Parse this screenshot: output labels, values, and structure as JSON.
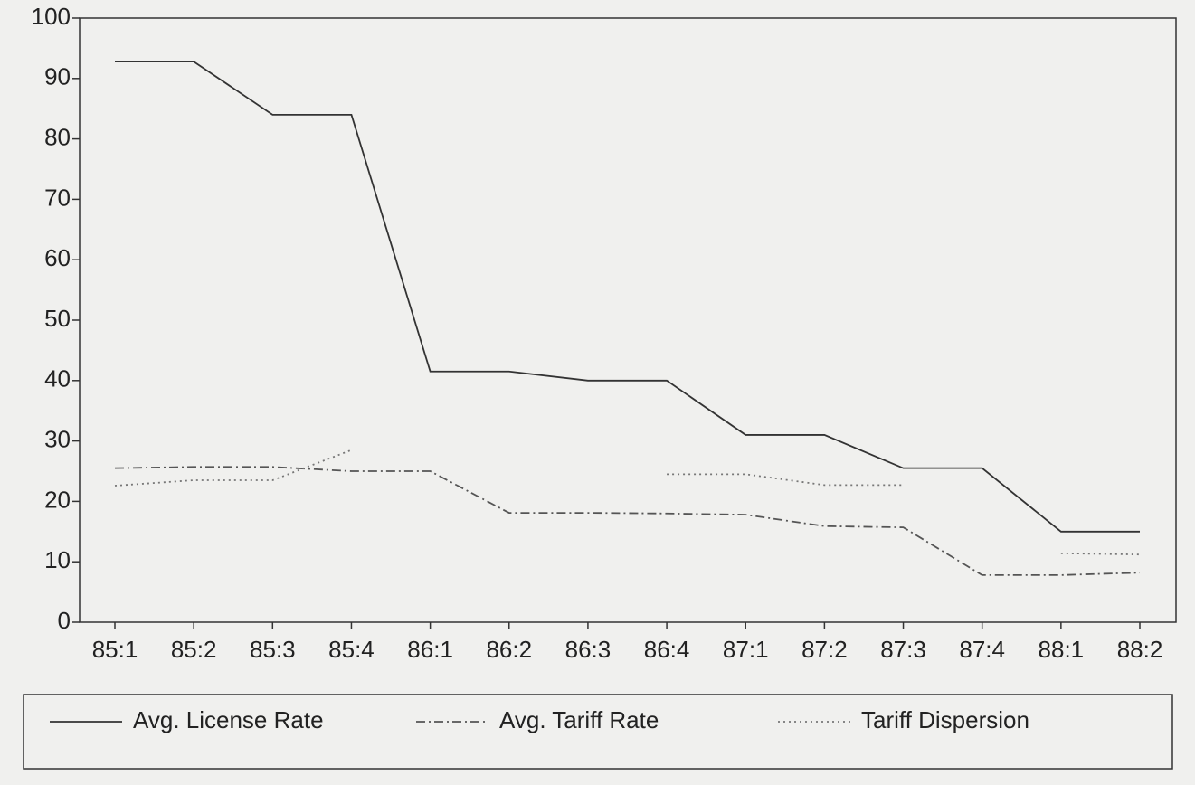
{
  "chart_data": {
    "type": "line",
    "categories": [
      "85:1",
      "85:2",
      "85:3",
      "85:4",
      "86:1",
      "86:2",
      "86:3",
      "86:4",
      "87:1",
      "87:2",
      "87:3",
      "87:4",
      "88:1",
      "88:2"
    ],
    "series": [
      {
        "name": "Avg. License Rate",
        "color": "#333333",
        "dash": "solid",
        "values": [
          92.8,
          92.8,
          84,
          84,
          41.5,
          41.5,
          40,
          40,
          31,
          31,
          25.5,
          25.5,
          15,
          15
        ]
      },
      {
        "name": "Avg. Tariff Rate",
        "color": "#555555",
        "dash": "dashdot",
        "values": [
          25.5,
          25.7,
          25.7,
          25,
          25,
          18.1,
          18.1,
          18,
          17.8,
          15.9,
          15.7,
          7.8,
          7.8,
          8.2
        ]
      },
      {
        "name": "Tariff Dispersion",
        "color": "#777777",
        "dash": "dotted",
        "values": [
          22.6,
          23.5,
          23.5,
          28.5,
          null,
          null,
          null,
          24.5,
          24.5,
          22.7,
          22.7,
          null,
          11.4,
          11.2
        ]
      }
    ],
    "ylim": [
      0,
      100
    ],
    "yticks": [
      0,
      10,
      20,
      30,
      40,
      50,
      60,
      70,
      80,
      90,
      100
    ],
    "grid": false,
    "legend": "bottom"
  }
}
